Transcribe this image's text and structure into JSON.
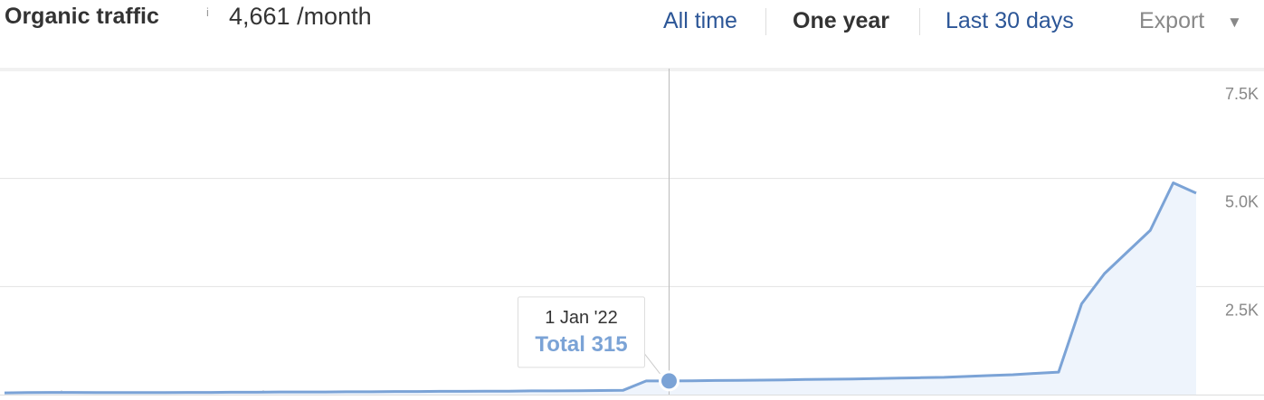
{
  "header": {
    "title": "Organic traffic",
    "info": "i",
    "traffic": "4,661 /month"
  },
  "controls": {
    "all_time": "All time",
    "one_year": "One year",
    "last_30_days": "Last 30 days",
    "export": "Export"
  },
  "chart_data": {
    "type": "line",
    "categories": [
      null,
      null,
      null,
      null,
      null,
      null,
      null,
      null,
      null,
      null,
      null,
      null,
      null,
      null,
      null,
      null,
      null,
      null,
      null,
      null,
      null,
      null,
      null,
      null,
      null,
      null,
      null,
      null,
      null,
      "1 Jan '22",
      null,
      null,
      null,
      null,
      null,
      null,
      null,
      null,
      null,
      null,
      null,
      null,
      null,
      null,
      null,
      null,
      null,
      null,
      null,
      null,
      null,
      null,
      null
    ],
    "series": [
      {
        "name": "Total",
        "color": "#7ba3d6",
        "values": [
          40,
          45,
          50,
          50,
          45,
          45,
          45,
          45,
          50,
          50,
          55,
          55,
          60,
          60,
          60,
          65,
          65,
          70,
          70,
          75,
          75,
          80,
          80,
          85,
          85,
          90,
          95,
          100,
          315,
          315,
          320,
          325,
          330,
          335,
          340,
          350,
          355,
          360,
          370,
          380,
          390,
          400,
          420,
          440,
          460,
          490,
          520,
          2100,
          2800,
          3300,
          3800,
          4900,
          4661
        ]
      }
    ],
    "ylim": [
      0,
      7500
    ],
    "yticks": [
      {
        "value": 2500,
        "label": "2.5K"
      },
      {
        "value": 5000,
        "label": "5.0K"
      },
      {
        "value": 7500,
        "label": "7.5K"
      }
    ],
    "grid": true
  }
}
